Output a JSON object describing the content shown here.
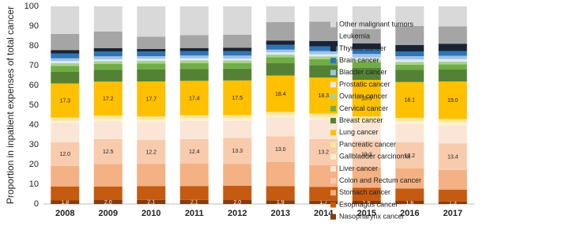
{
  "chart_data": {
    "type": "stacked_bar",
    "y_label": "Proportion in inpatient expenses of total cancer",
    "categories": [
      "2008",
      "2009",
      "2010",
      "2011",
      "2012",
      "2013",
      "2014",
      "2015",
      "2016",
      "2017"
    ],
    "ylim": [
      0,
      100
    ],
    "yticks": [
      0,
      10,
      20,
      30,
      40,
      50,
      60,
      70,
      80,
      90,
      100
    ],
    "grid": false,
    "legend": "right",
    "series": [
      {
        "name": "Nasopharynx cancer",
        "color": "#843c0c",
        "label_color": "#ffffff",
        "values": [
          1.8,
          2.0,
          2.1,
          2.1,
          2.0,
          1.9,
          1.7,
          1.6,
          1.6,
          1.3
        ],
        "value_labels": [
          "1.8",
          "2.0",
          "2.1",
          "2.1",
          "2.0",
          "1.9",
          "1.7",
          "1.6",
          "1.6",
          "1.3"
        ]
      },
      {
        "name": "Esophagus cancer",
        "color": "#c55a11",
        "values": [
          7.0,
          6.8,
          6.9,
          7.0,
          7.2,
          7.1,
          7.0,
          6.6,
          6.2,
          6.0
        ]
      },
      {
        "name": "Stomach cancer",
        "color": "#f4b183",
        "values": [
          10.5,
          11.5,
          11.2,
          11.3,
          11.0,
          12.2,
          11.0,
          10.3,
          10.2,
          10.0
        ]
      },
      {
        "name": "Colon and Rectum cancer",
        "color": "#f8cbad",
        "label_color": "#222222",
        "values": [
          12.0,
          12.5,
          12.2,
          12.4,
          13.3,
          13.0,
          13.2,
          13.3,
          13.2,
          13.4
        ],
        "value_labels": [
          "12.0",
          "12.5",
          "12.2",
          "12.4",
          "13.3",
          "13.0",
          "13.2",
          "13.3",
          "13.2",
          "13.4"
        ]
      },
      {
        "name": "Liver cancer",
        "color": "#fbe5d6",
        "values": [
          9.5,
          9.0,
          9.0,
          9.2,
          8.6,
          9.4,
          9.8,
          9.4,
          9.3,
          9.2
        ]
      },
      {
        "name": "Gallbladder carcinoma",
        "color": "#fff2cc",
        "values": [
          1.3,
          1.3,
          1.3,
          1.3,
          1.3,
          1.4,
          1.4,
          1.4,
          1.4,
          1.4
        ]
      },
      {
        "name": "Pancreatic cancer",
        "color": "#ffe699",
        "values": [
          1.6,
          1.6,
          1.6,
          1.6,
          1.6,
          1.6,
          1.6,
          1.7,
          1.7,
          1.7
        ]
      },
      {
        "name": "Lung cancer",
        "color": "#ffc000",
        "label_color": "#222222",
        "values": [
          17.3,
          17.2,
          17.7,
          17.4,
          17.5,
          18.4,
          18.3,
          18.5,
          18.1,
          19.0
        ],
        "value_labels": [
          "17.3",
          "17.2",
          "17.7",
          "17.4",
          "17.5",
          "18.4",
          "18.3",
          "18.5",
          "18.1",
          "19.0"
        ]
      },
      {
        "name": "Breast cancer",
        "color": "#548235",
        "values": [
          5.8,
          5.9,
          6.0,
          5.9,
          6.0,
          6.2,
          6.3,
          6.0,
          6.1,
          6.0
        ]
      },
      {
        "name": "Cervical cancer",
        "color": "#70ad47",
        "values": [
          3.0,
          3.0,
          3.1,
          3.1,
          2.8,
          3.0,
          3.0,
          2.8,
          2.7,
          2.7
        ]
      },
      {
        "name": "Ovarian cancer",
        "color": "#a9d18e",
        "values": [
          1.5,
          1.4,
          1.4,
          1.4,
          1.3,
          1.4,
          1.4,
          1.4,
          1.4,
          1.4
        ]
      },
      {
        "name": "Prostatic cancer",
        "color": "#deebf7",
        "values": [
          1.0,
          1.0,
          1.0,
          1.0,
          1.0,
          1.1,
          1.1,
          1.1,
          1.2,
          1.2
        ]
      },
      {
        "name": "Bladder cancer",
        "color": "#9dc3e6",
        "label_color": "#222222",
        "values": [
          1.4,
          1.5,
          1.3,
          1.4,
          1.5,
          1.4,
          1.6,
          1.8,
          1.7,
          1.7
        ]
      },
      {
        "name": "Brain cancer",
        "color": "#2e75b6",
        "values": [
          2.5,
          2.4,
          2.3,
          2.3,
          2.2,
          2.4,
          2.4,
          2.4,
          2.4,
          2.4
        ]
      },
      {
        "name": "Thyroid cancer",
        "color": "#1a2333",
        "label_color": "#ffffff",
        "values": [
          1.7,
          1.7,
          1.3,
          1.5,
          1.8,
          2.2,
          2.7,
          2.9,
          3.2,
          3.7
        ]
      },
      {
        "name": "Leukemia",
        "color": "#a5a5a5",
        "values": [
          8.1,
          8.4,
          6.2,
          6.6,
          6.6,
          9.3,
          9.7,
          7.3,
          9.7,
          8.8
        ]
      },
      {
        "name": "Other malignant tumors",
        "color": "#d9d9d9",
        "values": [
          14.0,
          12.8,
          15.4,
          14.5,
          14.3,
          8.0,
          7.8,
          11.5,
          9.9,
          10.1
        ]
      }
    ]
  }
}
